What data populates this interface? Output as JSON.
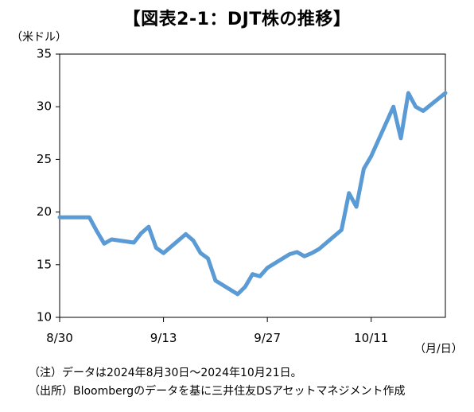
{
  "header": {
    "title": "【図表2-1：DJT株の推移】",
    "y_unit": "（米ドル）",
    "x_unit": "（月/日）"
  },
  "footnotes": {
    "note": "（注）データは2024年8月30日～2024年10月21日。",
    "source": "（出所）Bloombergのデータを基に三井住友DSアセットマネジメント作成"
  },
  "chart_data": {
    "type": "line",
    "title": "【図表2-1：DJT株の推移】",
    "ylabel": "（米ドル）",
    "xlabel": "（月/日）",
    "ylim": [
      10,
      35
    ],
    "yticks": [
      10,
      15,
      20,
      25,
      30,
      35
    ],
    "xlim": [
      "2024-08-30",
      "2024-10-21"
    ],
    "xtick_labels": [
      {
        "date": "2024-08-30",
        "label": "8/30"
      },
      {
        "date": "2024-09-13",
        "label": "9/13"
      },
      {
        "date": "2024-09-27",
        "label": "9/27"
      },
      {
        "date": "2024-10-11",
        "label": "10/11"
      }
    ],
    "grid": false,
    "line_color": "#5b9bd5",
    "series": [
      {
        "points": [
          {
            "x": "2024-08-30",
            "y": 19.5
          },
          {
            "x": "2024-09-03",
            "y": 19.5
          },
          {
            "x": "2024-09-04",
            "y": 18.2
          },
          {
            "x": "2024-09-05",
            "y": 17.0
          },
          {
            "x": "2024-09-06",
            "y": 17.4
          },
          {
            "x": "2024-09-09",
            "y": 17.1
          },
          {
            "x": "2024-09-10",
            "y": 18.0
          },
          {
            "x": "2024-09-11",
            "y": 18.6
          },
          {
            "x": "2024-09-12",
            "y": 16.6
          },
          {
            "x": "2024-09-13",
            "y": 16.1
          },
          {
            "x": "2024-09-16",
            "y": 17.9
          },
          {
            "x": "2024-09-17",
            "y": 17.3
          },
          {
            "x": "2024-09-18",
            "y": 16.1
          },
          {
            "x": "2024-09-19",
            "y": 15.6
          },
          {
            "x": "2024-09-20",
            "y": 13.5
          },
          {
            "x": "2024-09-23",
            "y": 12.2
          },
          {
            "x": "2024-09-24",
            "y": 12.9
          },
          {
            "x": "2024-09-25",
            "y": 14.1
          },
          {
            "x": "2024-09-26",
            "y": 13.9
          },
          {
            "x": "2024-09-27",
            "y": 14.7
          },
          {
            "x": "2024-09-30",
            "y": 16.0
          },
          {
            "x": "2024-10-01",
            "y": 16.2
          },
          {
            "x": "2024-10-02",
            "y": 15.8
          },
          {
            "x": "2024-10-03",
            "y": 16.1
          },
          {
            "x": "2024-10-04",
            "y": 16.5
          },
          {
            "x": "2024-10-07",
            "y": 18.3
          },
          {
            "x": "2024-10-08",
            "y": 21.8
          },
          {
            "x": "2024-10-09",
            "y": 20.5
          },
          {
            "x": "2024-10-10",
            "y": 24.1
          },
          {
            "x": "2024-10-11",
            "y": 25.3
          },
          {
            "x": "2024-10-14",
            "y": 30.0
          },
          {
            "x": "2024-10-15",
            "y": 27.0
          },
          {
            "x": "2024-10-16",
            "y": 31.3
          },
          {
            "x": "2024-10-17",
            "y": 30.0
          },
          {
            "x": "2024-10-18",
            "y": 29.6
          },
          {
            "x": "2024-10-21",
            "y": 31.3
          }
        ]
      }
    ]
  }
}
